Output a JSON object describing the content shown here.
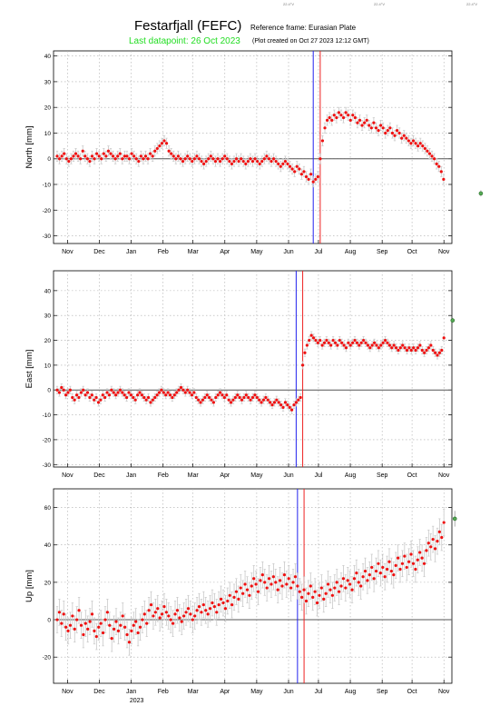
{
  "header": {
    "title": "Festarfjall (FEFC)",
    "reference_frame": "Reference frame: Eurasian Plate",
    "last_datapoint": "Last datapoint: 26 Oct 2023",
    "created": "(Plot created on Oct 27 2023 12:12 GMT)",
    "corner_labels": [
      "22.4°V",
      "22.4°V",
      "22.4°V"
    ]
  },
  "colors": {
    "data": "#ee1111",
    "error_bar": "#c8c8c8",
    "zero_line": "#555555",
    "vline_blue": "#2222ee",
    "vline_red": "#ee2222",
    "highlight_point": "#55aa55",
    "title_green": "#22dd22"
  },
  "chart_data": [
    {
      "type": "scatter",
      "ylabel": "North [mm]",
      "ylim": [
        -33,
        42
      ],
      "yticks": [
        -30,
        -20,
        -10,
        0,
        10,
        20,
        30,
        40
      ],
      "xtick_labels": [
        "Nov",
        "Dec",
        "Jan",
        "Feb",
        "Mar",
        "Apr",
        "May",
        "Jun",
        "Jul",
        "Aug",
        "Sep",
        "Oct",
        "Nov"
      ],
      "year_label": "",
      "grid": true,
      "error": 2.0,
      "series": [
        {
          "values": [
            1,
            0,
            1,
            2,
            0,
            -1,
            0,
            1,
            2,
            1,
            0,
            3,
            1,
            0,
            -1,
            1,
            0,
            2,
            1,
            0,
            2,
            1,
            3,
            2,
            1,
            0,
            1,
            2,
            0,
            1,
            1,
            0,
            2,
            1,
            0,
            -1,
            1,
            0,
            1,
            0,
            2,
            1,
            3,
            4,
            5,
            6,
            7,
            6,
            3,
            2,
            1,
            0,
            1,
            0,
            -1,
            0,
            1,
            0,
            -1,
            0,
            1,
            0,
            -1,
            -2,
            -1,
            0,
            1,
            0,
            -1,
            0,
            -1,
            0,
            1,
            0,
            -1,
            -2,
            -1,
            0,
            -1,
            0,
            -1,
            -2,
            -1,
            0,
            -1,
            0,
            -1,
            -2,
            -1,
            0,
            1,
            0,
            -1,
            0,
            -1,
            -2,
            -3,
            -2,
            -1,
            -2,
            -3,
            -4,
            -5,
            -3,
            -4,
            -6,
            -5,
            -7,
            -8,
            -6,
            -9,
            -8,
            -7,
            0,
            7,
            12,
            15,
            16,
            15,
            17,
            16,
            18,
            17,
            16,
            18,
            17,
            15,
            17,
            16,
            14,
            15,
            13,
            14,
            15,
            13,
            12,
            14,
            12,
            11,
            13,
            12,
            10,
            11,
            12,
            10,
            9,
            11,
            10,
            8,
            9,
            8,
            7,
            6,
            7,
            6,
            5,
            6,
            5,
            4,
            3,
            2,
            1,
            0,
            -2,
            -3,
            -5,
            -8
          ]
        }
      ],
      "highlight": [
        {
          "index": 182,
          "y": -13.5
        }
      ],
      "vlines": {
        "blue_index": 110,
        "red_index": 113
      }
    },
    {
      "type": "scatter",
      "ylabel": "East [mm]",
      "ylim": [
        -31,
        48
      ],
      "yticks": [
        -30,
        -20,
        -10,
        0,
        10,
        20,
        30,
        40
      ],
      "xtick_labels": [
        "Nov",
        "Dec",
        "Jan",
        "Feb",
        "Mar",
        "Apr",
        "May",
        "Jun",
        "Jul",
        "Aug",
        "Sep",
        "Oct",
        "Nov"
      ],
      "year_label": "",
      "grid": true,
      "error": 1.5,
      "series": [
        {
          "values": [
            0,
            -1,
            1,
            0,
            -2,
            -1,
            0,
            -3,
            -4,
            -2,
            -3,
            -1,
            0,
            -2,
            -1,
            -3,
            -2,
            -4,
            -3,
            -5,
            -4,
            -2,
            -3,
            -1,
            -2,
            0,
            -1,
            -2,
            -1,
            0,
            -1,
            -2,
            -3,
            -1,
            -2,
            -3,
            -4,
            -2,
            -1,
            -2,
            -3,
            -4,
            -3,
            -5,
            -4,
            -3,
            -2,
            -1,
            0,
            -1,
            -2,
            -1,
            -2,
            -3,
            -2,
            -1,
            0,
            1,
            0,
            -1,
            0,
            -1,
            -2,
            -1,
            -3,
            -4,
            -5,
            -4,
            -3,
            -2,
            -3,
            -4,
            -5,
            -3,
            -2,
            -1,
            -2,
            -3,
            -2,
            -4,
            -5,
            -4,
            -3,
            -2,
            -3,
            -4,
            -3,
            -2,
            -3,
            -4,
            -3,
            -2,
            -3,
            -4,
            -5,
            -4,
            -3,
            -4,
            -5,
            -6,
            -5,
            -4,
            -5,
            -6,
            -7,
            -5,
            -6,
            -7,
            -8,
            -6,
            -5,
            -4,
            -3,
            10,
            15,
            18,
            20,
            22,
            21,
            20,
            19,
            20,
            18,
            19,
            20,
            19,
            18,
            20,
            19,
            18,
            20,
            19,
            18,
            17,
            19,
            18,
            19,
            20,
            19,
            18,
            19,
            20,
            19,
            18,
            17,
            18,
            19,
            18,
            17,
            18,
            19,
            20,
            19,
            18,
            17,
            18,
            17,
            16,
            17,
            18,
            17,
            16,
            17,
            16,
            17,
            16,
            17,
            18,
            16,
            15,
            16,
            17,
            18,
            16,
            15,
            14,
            15,
            16,
            21
          ]
        }
      ],
      "highlight": [
        {
          "index": 182,
          "y": 28
        }
      ],
      "vlines": {
        "blue_index": 110,
        "red_index": 113
      }
    },
    {
      "type": "scatter",
      "ylabel": "Up [mm]",
      "ylim": [
        -34,
        70
      ],
      "yticks": [
        -20,
        0,
        20,
        40,
        60
      ],
      "xtick_labels": [
        "Nov",
        "Dec",
        "Jan",
        "Feb",
        "Mar",
        "Apr",
        "May",
        "Jun",
        "Jul",
        "Aug",
        "Sep",
        "Oct",
        "Nov"
      ],
      "year_label": "2023",
      "grid": true,
      "error": 7,
      "series": [
        {
          "values": [
            0,
            4,
            -2,
            3,
            -4,
            -6,
            -3,
            2,
            -5,
            0,
            5,
            -3,
            -8,
            -2,
            -5,
            -1,
            3,
            -6,
            -9,
            -4,
            -2,
            -7,
            0,
            4,
            -3,
            -10,
            -5,
            -1,
            -6,
            -3,
            2,
            -4,
            -8,
            -12,
            -6,
            -3,
            -1,
            -7,
            -4,
            0,
            3,
            -2,
            5,
            8,
            2,
            4,
            6,
            1,
            3,
            7,
            4,
            2,
            0,
            -2,
            3,
            5,
            1,
            -1,
            2,
            4,
            6,
            3,
            0,
            2,
            5,
            7,
            4,
            8,
            5,
            3,
            6,
            9,
            7,
            4,
            8,
            11,
            9,
            6,
            10,
            13,
            8,
            12,
            15,
            11,
            17,
            14,
            19,
            16,
            13,
            18,
            22,
            19,
            15,
            21,
            24,
            20,
            17,
            22,
            19,
            23,
            20,
            16,
            21,
            18,
            24,
            19,
            22,
            17,
            20,
            23,
            18,
            15,
            12,
            16,
            10,
            14,
            18,
            12,
            15,
            9,
            13,
            17,
            11,
            14,
            19,
            16,
            13,
            17,
            20,
            15,
            18,
            22,
            17,
            21,
            19,
            16,
            22,
            25,
            20,
            18,
            23,
            26,
            21,
            24,
            28,
            22,
            26,
            30,
            25,
            28,
            23,
            27,
            31,
            26,
            24,
            29,
            33,
            27,
            30,
            34,
            28,
            31,
            35,
            30,
            27,
            32,
            36,
            33,
            30,
            37,
            41,
            39,
            43,
            38,
            42,
            47,
            44,
            52
          ]
        }
      ],
      "highlight": [
        {
          "index": 182,
          "y": 54
        }
      ],
      "vlines": {
        "blue_index": 110,
        "red_index": 113
      }
    }
  ]
}
